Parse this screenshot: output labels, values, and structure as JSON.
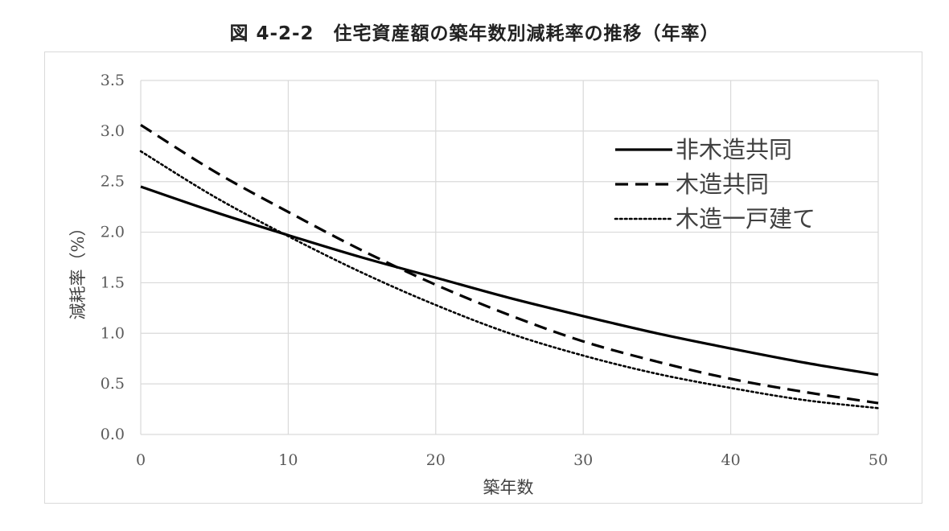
{
  "chart_data": {
    "type": "line",
    "title": "図 4-2-2　住宅資産額の築年数別減耗率の推移（年率）",
    "xlabel": "築年数",
    "ylabel": "減耗率（%）",
    "xlim": [
      0,
      50
    ],
    "ylim": [
      0,
      3.5
    ],
    "x_ticks": [
      0,
      10,
      20,
      30,
      40,
      50
    ],
    "y_ticks": [
      "0.0",
      "0.5",
      "1.0",
      "1.5",
      "2.0",
      "2.5",
      "3.0",
      "3.5"
    ],
    "grid": true,
    "legend_position": "top-right",
    "x": [
      0,
      5,
      10,
      15,
      20,
      25,
      30,
      35,
      40,
      45,
      50
    ],
    "series": [
      {
        "name": "非木造共同",
        "style": "solid",
        "values": [
          2.45,
          2.2,
          1.97,
          1.75,
          1.55,
          1.35,
          1.17,
          1.0,
          0.85,
          0.71,
          0.59
        ]
      },
      {
        "name": "木造共同",
        "style": "dashed",
        "values": [
          3.06,
          2.6,
          2.2,
          1.82,
          1.48,
          1.18,
          0.92,
          0.72,
          0.55,
          0.42,
          0.31
        ]
      },
      {
        "name": "木造一戸建て",
        "style": "dotted",
        "values": [
          2.8,
          2.35,
          1.96,
          1.6,
          1.28,
          1.0,
          0.78,
          0.6,
          0.46,
          0.34,
          0.26
        ]
      }
    ],
    "colors": {
      "line": "#000000",
      "grid": "#d9d9d9",
      "tick_text": "#595959"
    }
  }
}
